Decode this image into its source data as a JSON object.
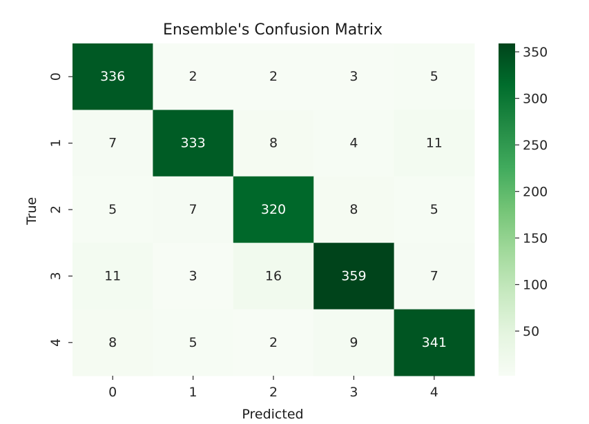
{
  "chart_data": {
    "type": "heatmap",
    "title": "Ensemble's Confusion Matrix",
    "xlabel": "Predicted",
    "ylabel": "True",
    "x_categories": [
      "0",
      "1",
      "2",
      "3",
      "4"
    ],
    "y_categories": [
      "0",
      "1",
      "2",
      "3",
      "4"
    ],
    "values": [
      [
        336,
        2,
        2,
        3,
        5
      ],
      [
        7,
        333,
        8,
        4,
        11
      ],
      [
        5,
        7,
        320,
        8,
        5
      ],
      [
        11,
        3,
        16,
        359,
        7
      ],
      [
        8,
        5,
        2,
        9,
        341
      ]
    ],
    "colormap": "Greens",
    "vmin": 2,
    "vmax": 359,
    "colorbar_ticks": [
      50,
      100,
      150,
      200,
      250,
      300,
      350
    ],
    "colors": {
      "low": "#f7fcf5",
      "high": "#00441b"
    }
  }
}
